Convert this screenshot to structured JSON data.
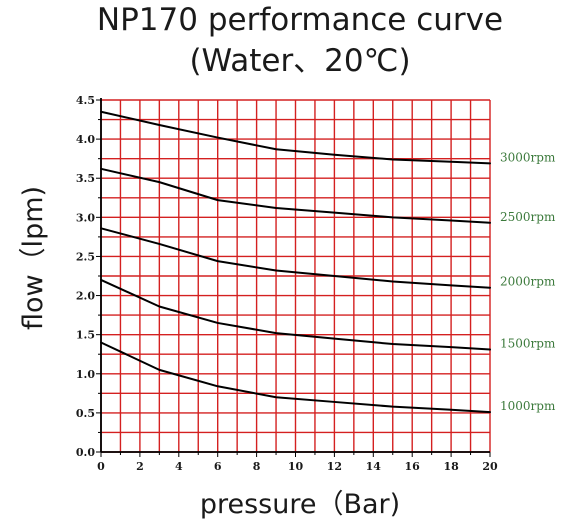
{
  "chart_data": {
    "type": "line",
    "title": "NP170 performance curve",
    "subtitle": "(Water、20℃)",
    "xlabel": "pressure（Bar)",
    "ylabel": "flow（lpm)",
    "xlim": [
      0,
      20
    ],
    "ylim": [
      0,
      4.5
    ],
    "x_ticks": [
      "0",
      "2",
      "4",
      "6",
      "8",
      "10",
      "12",
      "14",
      "16",
      "18",
      "20"
    ],
    "y_ticks": [
      "0.0",
      "0.5",
      "1.0",
      "1.5",
      "2.0",
      "2.5",
      "3.0",
      "3.5",
      "4.0",
      "4.5"
    ],
    "grid": true,
    "grid_color": "#d42020",
    "line_color": "#000000",
    "label_color": "#3c7a3c",
    "series": [
      {
        "name": "3000rpm",
        "x": [
          0,
          3,
          6,
          9,
          12,
          15,
          18,
          20
        ],
        "values": [
          4.35,
          4.18,
          4.02,
          3.87,
          3.8,
          3.74,
          3.71,
          3.69
        ]
      },
      {
        "name": "2500rpm",
        "x": [
          0,
          3,
          6,
          9,
          12,
          15,
          18,
          20
        ],
        "values": [
          3.62,
          3.45,
          3.22,
          3.12,
          3.06,
          3.0,
          2.96,
          2.93
        ]
      },
      {
        "name": "2000rpm",
        "x": [
          0,
          3,
          6,
          9,
          12,
          15,
          18,
          20
        ],
        "values": [
          2.86,
          2.66,
          2.44,
          2.32,
          2.25,
          2.18,
          2.13,
          2.1
        ]
      },
      {
        "name": "1500rpm",
        "x": [
          0,
          3,
          6,
          9,
          12,
          15,
          18,
          20
        ],
        "values": [
          2.2,
          1.86,
          1.65,
          1.52,
          1.45,
          1.38,
          1.34,
          1.31
        ]
      },
      {
        "name": "1000rpm",
        "x": [
          0,
          3,
          6,
          9,
          12,
          15,
          18,
          20
        ],
        "values": [
          1.4,
          1.05,
          0.84,
          0.7,
          0.64,
          0.58,
          0.54,
          0.51
        ]
      }
    ]
  }
}
